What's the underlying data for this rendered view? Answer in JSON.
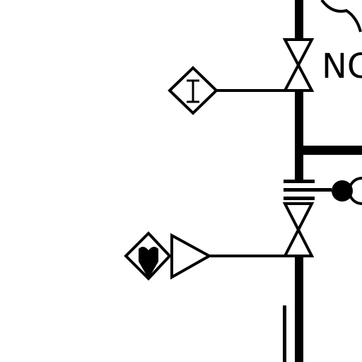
{
  "diagram": {
    "valve_label": "NC",
    "instrument_symbol": "I",
    "colors": {
      "line": "#000000",
      "background": "#ffffff"
    },
    "elements": [
      "main-pipe",
      "branch-pipe",
      "upper-gate-valve",
      "lower-gate-valve",
      "instrument-diamond",
      "actuator-diamond",
      "actuator-triangle",
      "flanged-break",
      "filled-connection-node",
      "cloud-boundary",
      "parallel-tubing-lines"
    ]
  }
}
